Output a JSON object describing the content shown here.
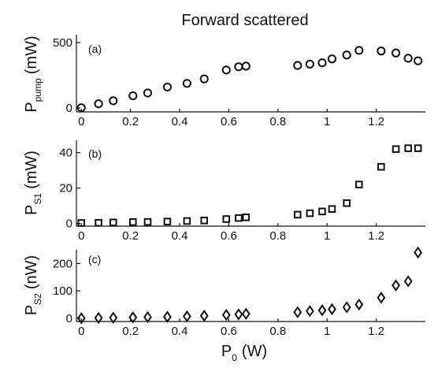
{
  "title": "Forward scattered",
  "xlabel": {
    "main": "P",
    "sub": "0",
    "unit": "(W)"
  },
  "chart_data": [
    {
      "type": "scatter",
      "panel_label": "(a)",
      "ylabel": {
        "main": "P",
        "sub": "pump",
        "unit": "(mW)"
      },
      "marker": "circle",
      "xlim": [
        -0.02,
        1.4
      ],
      "ylim": [
        -30,
        560
      ],
      "x_ticks": [
        0,
        0.2,
        0.4,
        0.6,
        0.8,
        1,
        1.2
      ],
      "x_tick_labels": [
        "0",
        "0.2",
        "0.4",
        "0.6",
        "0.8",
        "1",
        "1.2"
      ],
      "y_ticks": [
        0,
        500
      ],
      "y_tick_labels": [
        "0",
        "500"
      ],
      "series": [
        {
          "x": [
            0,
            0.07,
            0.13,
            0.21,
            0.27,
            0.35,
            0.43,
            0.5,
            0.59,
            0.64,
            0.67,
            0.88,
            0.93,
            0.98,
            1.02,
            1.08,
            1.13,
            1.22,
            1.28,
            1.33,
            1.37
          ],
          "y": [
            2,
            32,
            55,
            93,
            115,
            160,
            188,
            222,
            290,
            315,
            320,
            325,
            335,
            345,
            375,
            405,
            440,
            435,
            420,
            380,
            360
          ]
        }
      ]
    },
    {
      "type": "scatter",
      "panel_label": "(b)",
      "ylabel": {
        "main": "P",
        "sub": "S1",
        "unit": "(mW)"
      },
      "marker": "square",
      "xlim": [
        -0.02,
        1.4
      ],
      "ylim": [
        -1.5,
        47
      ],
      "x_ticks": [
        0,
        0.2,
        0.4,
        0.6,
        0.8,
        1,
        1.2
      ],
      "x_tick_labels": [
        "0",
        "0.2",
        "0.4",
        "0.6",
        "0.8",
        "1",
        "1.2"
      ],
      "y_ticks": [
        0,
        20,
        40
      ],
      "y_tick_labels": [
        "0",
        "20",
        "40"
      ],
      "series": [
        {
          "x": [
            0,
            0.07,
            0.13,
            0.21,
            0.27,
            0.35,
            0.43,
            0.5,
            0.59,
            0.64,
            0.67,
            0.88,
            0.93,
            0.98,
            1.02,
            1.08,
            1.13,
            1.22,
            1.28,
            1.33,
            1.37
          ],
          "y": [
            0.3,
            0.4,
            0.6,
            0.8,
            0.9,
            1.1,
            1.4,
            1.7,
            2.5,
            3.1,
            3.5,
            5,
            5.8,
            6.8,
            8.2,
            11.5,
            22,
            32,
            42,
            42.5,
            42.5
          ]
        }
      ]
    },
    {
      "type": "scatter",
      "panel_label": "(c)",
      "ylabel": {
        "main": "P",
        "sub": "S2",
        "unit": "(nW)"
      },
      "marker": "diamond",
      "xlim": [
        -0.02,
        1.4
      ],
      "ylim": [
        -12,
        250
      ],
      "x_ticks": [
        0,
        0.2,
        0.4,
        0.6,
        0.8,
        1,
        1.2
      ],
      "x_tick_labels": [
        "0",
        "0.2",
        "0.4",
        "0.6",
        "0.8",
        "1",
        "1.2"
      ],
      "y_ticks": [
        0,
        100,
        200
      ],
      "y_tick_labels": [
        "0",
        "100",
        "200"
      ],
      "series": [
        {
          "x": [
            0,
            0.07,
            0.13,
            0.21,
            0.27,
            0.35,
            0.43,
            0.5,
            0.59,
            0.64,
            0.67,
            0.88,
            0.93,
            0.98,
            1.02,
            1.08,
            1.13,
            1.22,
            1.28,
            1.33,
            1.37
          ],
          "y": [
            0,
            1,
            2,
            3,
            4,
            5,
            7,
            9,
            12,
            14,
            16,
            22,
            26,
            29,
            33,
            40,
            50,
            75,
            120,
            135,
            240
          ]
        }
      ]
    }
  ]
}
